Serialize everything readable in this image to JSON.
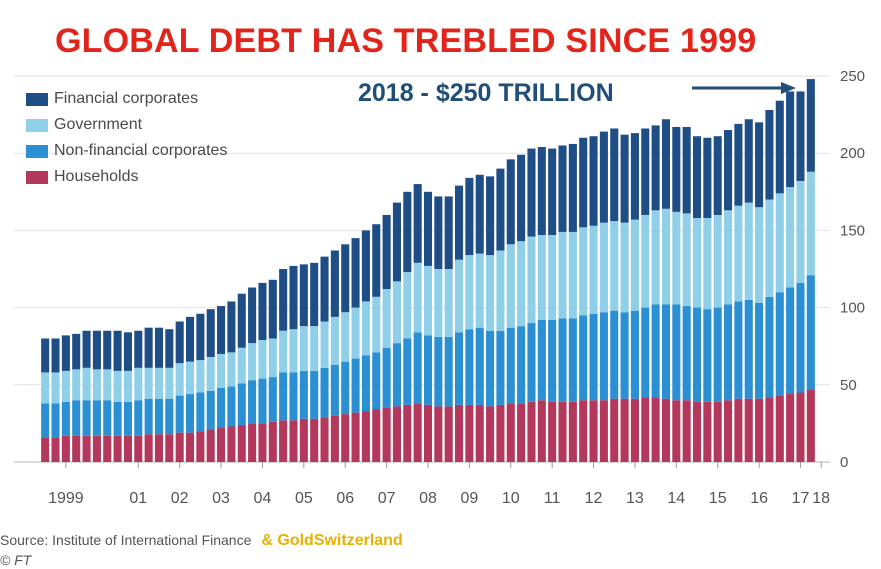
{
  "title": "GLOBAL DEBT HAS TREBLED SINCE 1999",
  "callout": "2018 - $250 TRILLION",
  "source": "Source: Institute of International Finance",
  "brand": "& GoldSwitzerland",
  "credit": "© FT",
  "colors": {
    "title": "#e3241b",
    "callout": "#1f4e79",
    "brand": "#e8b100",
    "households": "#b4375c",
    "non_financial": "#2b8fd4",
    "government": "#8fd0e8",
    "financial": "#1f4e86"
  },
  "chart_data": {
    "type": "bar",
    "stacked": true,
    "ylim": [
      0,
      250
    ],
    "yticks": [
      0,
      50,
      100,
      150,
      200,
      250
    ],
    "y_axis_side": "right",
    "grid": true,
    "legend_position": "top-left",
    "x_ticks": [
      {
        "label": "1999",
        "index": 2
      },
      {
        "label": "01",
        "index": 9
      },
      {
        "label": "02",
        "index": 13
      },
      {
        "label": "03",
        "index": 17
      },
      {
        "label": "04",
        "index": 21
      },
      {
        "label": "05",
        "index": 25
      },
      {
        "label": "06",
        "index": 29
      },
      {
        "label": "07",
        "index": 33
      },
      {
        "label": "08",
        "index": 37
      },
      {
        "label": "09",
        "index": 41
      },
      {
        "label": "10",
        "index": 45
      },
      {
        "label": "11",
        "index": 49
      },
      {
        "label": "12",
        "index": 53
      },
      {
        "label": "13",
        "index": 57
      },
      {
        "label": "14",
        "index": 61
      },
      {
        "label": "15",
        "index": 65
      },
      {
        "label": "16",
        "index": 69
      },
      {
        "label": "17",
        "index": 73
      },
      {
        "label": "18",
        "index": 75
      }
    ],
    "series": [
      {
        "name": "Households",
        "color": "#b4375c",
        "values": [
          16,
          16,
          17,
          17,
          17,
          17,
          17,
          17,
          17,
          17,
          18,
          18,
          18,
          19,
          19,
          20,
          21,
          22,
          23,
          24,
          25,
          25,
          26,
          27,
          27,
          28,
          28,
          29,
          30,
          31,
          32,
          33,
          34,
          35,
          36,
          37,
          38,
          37,
          36,
          36,
          37,
          37,
          37,
          36,
          37,
          38,
          38,
          39,
          40,
          39,
          39,
          39,
          40,
          40,
          40,
          41,
          41,
          41,
          42,
          42,
          41,
          40,
          40,
          39,
          39,
          39,
          40,
          41,
          41,
          41,
          42,
          43,
          44,
          45,
          47
        ]
      },
      {
        "name": "Non-financial corporates",
        "color": "#2b8fd4",
        "values": [
          22,
          22,
          22,
          23,
          23,
          23,
          23,
          22,
          22,
          23,
          23,
          23,
          23,
          24,
          25,
          25,
          25,
          26,
          26,
          27,
          28,
          29,
          29,
          31,
          31,
          31,
          31,
          32,
          33,
          34,
          35,
          36,
          37,
          39,
          41,
          43,
          46,
          45,
          45,
          45,
          47,
          49,
          50,
          49,
          48,
          49,
          50,
          51,
          52,
          53,
          54,
          54,
          55,
          56,
          57,
          57,
          56,
          57,
          58,
          60,
          61,
          62,
          61,
          61,
          60,
          61,
          62,
          63,
          64,
          62,
          65,
          67,
          69,
          71,
          74
        ]
      },
      {
        "name": "Government",
        "color": "#8fd0e8",
        "values": [
          20,
          20,
          20,
          20,
          21,
          20,
          20,
          20,
          20,
          21,
          20,
          20,
          20,
          21,
          21,
          21,
          22,
          22,
          22,
          23,
          24,
          25,
          25,
          27,
          28,
          29,
          29,
          30,
          31,
          32,
          33,
          35,
          36,
          38,
          40,
          43,
          45,
          45,
          44,
          44,
          47,
          48,
          48,
          49,
          52,
          54,
          55,
          56,
          55,
          55,
          56,
          56,
          57,
          57,
          58,
          58,
          58,
          59,
          60,
          61,
          62,
          60,
          60,
          58,
          59,
          60,
          61,
          62,
          63,
          62,
          63,
          64,
          65,
          66,
          67
        ]
      },
      {
        "name": "Financial corporates",
        "color": "#1f4e86",
        "values": [
          22,
          22,
          23,
          23,
          24,
          25,
          25,
          26,
          25,
          24,
          26,
          26,
          25,
          27,
          29,
          30,
          31,
          31,
          33,
          35,
          36,
          37,
          38,
          40,
          41,
          40,
          41,
          42,
          43,
          44,
          45,
          46,
          47,
          48,
          51,
          52,
          51,
          48,
          47,
          47,
          48,
          50,
          51,
          51,
          53,
          55,
          56,
          57,
          57,
          56,
          56,
          57,
          58,
          58,
          59,
          60,
          57,
          56,
          56,
          55,
          58,
          55,
          56,
          53,
          52,
          51,
          52,
          53,
          54,
          55,
          58,
          60,
          62,
          58,
          60
        ]
      }
    ]
  }
}
